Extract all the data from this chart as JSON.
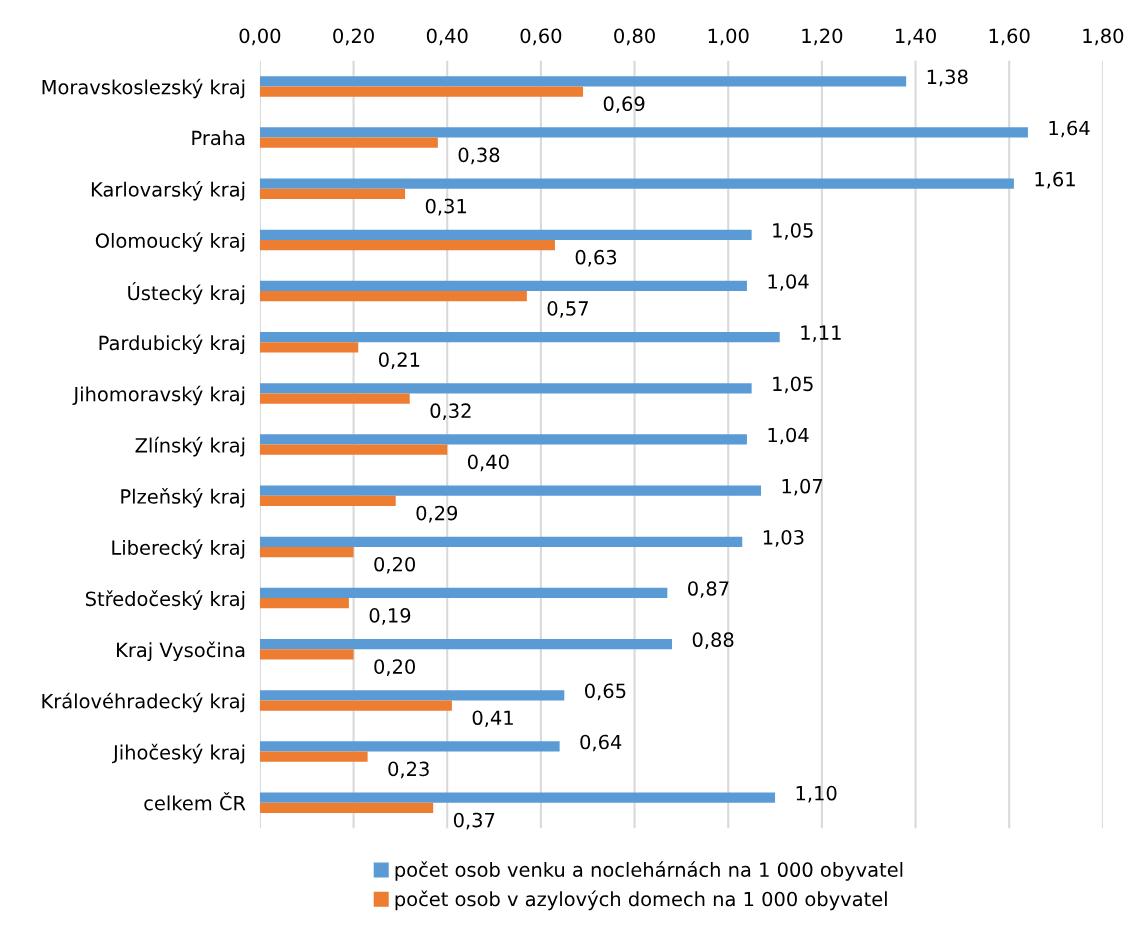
{
  "chart_data": {
    "type": "bar",
    "orientation": "horizontal",
    "categories": [
      "Moravskoslezský kraj",
      "Praha",
      "Karlovarský kraj",
      "Olomoucký kraj",
      "Ústecký kraj",
      "Pardubický kraj",
      "Jihomoravský kraj",
      "Zlínský kraj",
      "Plzeňský kraj",
      "Liberecký kraj",
      "Středočeský kraj",
      "Kraj Vysočina",
      "Královéhradecký kraj",
      "Jihočeský kraj",
      "celkem ČR"
    ],
    "series": [
      {
        "name": "počet osob venku a noclehárnách na 1 000 obyvatel",
        "color": "#5b9bd5",
        "values": [
          1.38,
          1.64,
          1.61,
          1.05,
          1.04,
          1.11,
          1.05,
          1.04,
          1.07,
          1.03,
          0.87,
          0.88,
          0.65,
          0.64,
          1.1
        ],
        "value_labels": [
          "1,38",
          "1,64",
          "1,61",
          "1,05",
          "1,04",
          "1,11",
          "1,05",
          "1,04",
          "1,07",
          "1,03",
          "0,87",
          "0,88",
          "0,65",
          "0,64",
          "1,10"
        ]
      },
      {
        "name": "počet osob v azylových domech na 1 000 obyvatel",
        "color": "#ed7d31",
        "values": [
          0.69,
          0.38,
          0.31,
          0.63,
          0.57,
          0.21,
          0.32,
          0.4,
          0.29,
          0.2,
          0.19,
          0.2,
          0.41,
          0.23,
          0.37
        ],
        "value_labels": [
          "0,69",
          "0,38",
          "0,31",
          "0,63",
          "0,57",
          "0,21",
          "0,32",
          "0,40",
          "0,29",
          "0,20",
          "0,19",
          "0,20",
          "0,41",
          "0,23",
          "0,37"
        ]
      }
    ],
    "xlim": [
      0,
      1.8
    ],
    "xticks": [
      {
        "value": 0,
        "label": "0,00"
      },
      {
        "value": 0.2,
        "label": "0,20"
      },
      {
        "value": 0.4,
        "label": "0,40"
      },
      {
        "value": 0.6,
        "label": "0,60"
      },
      {
        "value": 0.8,
        "label": "0,80"
      },
      {
        "value": 1.0,
        "label": "1,00"
      },
      {
        "value": 1.2,
        "label": "1,20"
      },
      {
        "value": 1.4,
        "label": "1,40"
      },
      {
        "value": 1.6,
        "label": "1,60"
      },
      {
        "value": 1.8,
        "label": "1,80"
      }
    ],
    "grid": "x",
    "legend": "bottom"
  }
}
